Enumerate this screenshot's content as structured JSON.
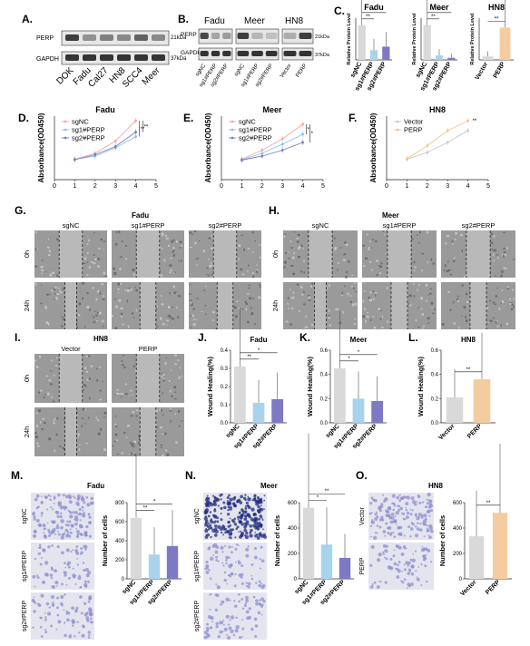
{
  "colors": {
    "grey": "#d9d9d9",
    "light_blue": "#a9d3ec",
    "purple": "#7d79c2",
    "peach": "#f5cc9f",
    "blot_dark": "#2a2a2a",
    "wound_bg": "#9a9a9a",
    "transwell_light": "#8e8fd0",
    "transwell_dark": "#1d2a7c"
  },
  "panels": {
    "A": {
      "letter": "A.",
      "rows": [
        "PERP",
        "GAPDH"
      ],
      "sizes": [
        "21kDa",
        "37kDa"
      ],
      "lanes": [
        "DOK",
        "Fadu",
        "Cal27",
        "HN8",
        "SCC4",
        "Meer"
      ]
    },
    "B": {
      "letter": "B.",
      "groups": [
        "Fadu",
        "Meer",
        "HN8"
      ],
      "rows": [
        "PERP",
        "GAPDH"
      ],
      "sizes": [
        "21kDa",
        "37kDa"
      ],
      "lanes": [
        "sgNC",
        "sg1#PERP",
        "sg2#PERP",
        "sgNC",
        "sg1#PERP",
        "sg2#PERP",
        "Vector",
        "PERP"
      ]
    },
    "C": {
      "letter": "C.",
      "ylabel": "Relative Protein Level",
      "sig": [
        "**",
        "*",
        "**",
        "**",
        "**"
      ]
    },
    "D": {
      "letter": "D.",
      "title": "Fadu",
      "sig": [
        "**",
        "**"
      ]
    },
    "E": {
      "letter": "E.",
      "title": "Meer",
      "sig": [
        "*",
        "*"
      ]
    },
    "F": {
      "letter": "F.",
      "title": "HN8",
      "sig": [
        "**"
      ]
    },
    "curves": {
      "ylabel": "Absorbance(OD450)",
      "xticks": [
        "0",
        "1",
        "2",
        "3",
        "4",
        "5"
      ],
      "legend_sg": [
        "sgNC",
        "sg1#PERP",
        "sg2#PERP"
      ],
      "legend_ov": [
        "Vector",
        "PERP"
      ]
    },
    "G": {
      "letter": "G.",
      "title": "Fadu",
      "cols": [
        "sgNC",
        "sg1#PERP",
        "sg2#PERP"
      ],
      "rows": [
        "0h",
        "24h"
      ]
    },
    "H": {
      "letter": "H.",
      "title": "Meer",
      "cols": [
        "sgNC",
        "sg1#PERP",
        "sg2#PERP"
      ],
      "rows": [
        "0h",
        "24h"
      ]
    },
    "I": {
      "letter": "I.",
      "title": "HN8",
      "cols": [
        "Vector",
        "PERP"
      ],
      "rows": [
        "0h",
        "24h"
      ]
    },
    "J": {
      "letter": "J.",
      "title": "Fadu",
      "sig": [
        "**",
        "*"
      ]
    },
    "K": {
      "letter": "K.",
      "title": "Meer",
      "sig": [
        "*",
        "*"
      ]
    },
    "L": {
      "letter": "L.",
      "title": "HN8",
      "sig": [
        "**"
      ]
    },
    "wound": {
      "ylabel": "Wound Healing(%)",
      "yticks": [
        "0.0",
        "0.2",
        "0.4",
        "0.6"
      ]
    },
    "M": {
      "letter": "M.",
      "title": "Fadu",
      "rows": [
        "sgNC",
        "sg1#PERP",
        "sg2#PERP"
      ],
      "sig": [
        "**",
        "*"
      ]
    },
    "N": {
      "letter": "N.",
      "title": "Meer",
      "rows": [
        "sgNC",
        "sg1#PERP",
        "sg2#PERP"
      ],
      "sig": [
        "*",
        "**"
      ]
    },
    "O": {
      "letter": "O.",
      "title": "HN8",
      "rows": [
        "Vector",
        "PERP"
      ],
      "sig": [
        "**"
      ]
    },
    "cells": {
      "ylabel": "Number of cells",
      "yticks_mn": [
        "0",
        "200",
        "400",
        "600",
        "800"
      ],
      "yticks_o": [
        "0",
        "200",
        "400",
        "600"
      ]
    }
  },
  "chart_data": [
    {
      "id": "C-Fadu",
      "type": "bar",
      "title": "Fadu",
      "ylabel": "Relative Protein Level",
      "categories": [
        "sgNC",
        "sg1#PERP",
        "sg2#PERP"
      ],
      "values": [
        1.0,
        0.28,
        0.38
      ],
      "ylim": [
        0,
        1.2
      ]
    },
    {
      "id": "C-Meer",
      "type": "bar",
      "title": "Meer",
      "ylabel": "Relative Protein Level",
      "categories": [
        "sgNC",
        "sg1#PERP",
        "sg2#PERP"
      ],
      "values": [
        1.0,
        0.13,
        0.06
      ],
      "ylim": [
        0,
        1.2
      ]
    },
    {
      "id": "C-HN8",
      "type": "bar",
      "title": "HN8",
      "ylabel": "Relative Protein Level",
      "categories": [
        "Vector",
        "PERP"
      ],
      "values": [
        1.0,
        9.3
      ],
      "ylim": [
        0,
        12
      ]
    },
    {
      "id": "D",
      "type": "line",
      "title": "Fadu",
      "xlabel": "",
      "ylabel": "Absorbance(OD450)",
      "x": [
        1,
        2,
        3,
        4
      ],
      "xlim": [
        0,
        5
      ],
      "ylim": [
        0,
        1.4
      ],
      "series": [
        {
          "name": "sgNC",
          "values": [
            0.45,
            0.58,
            0.85,
            1.3
          ]
        },
        {
          "name": "sg1#PERP",
          "values": [
            0.45,
            0.52,
            0.7,
            0.95
          ]
        },
        {
          "name": "sg2#PERP",
          "values": [
            0.44,
            0.55,
            0.73,
            1.05
          ]
        }
      ]
    },
    {
      "id": "E",
      "type": "line",
      "title": "Meer",
      "xlabel": "",
      "ylabel": "Absorbance(OD450)",
      "x": [
        1,
        2,
        3,
        4
      ],
      "xlim": [
        0,
        5
      ],
      "ylim": [
        0,
        1.4
      ],
      "series": [
        {
          "name": "sgNC",
          "values": [
            0.45,
            0.65,
            0.9,
            1.22
          ]
        },
        {
          "name": "sg1#PERP",
          "values": [
            0.44,
            0.58,
            0.78,
            1.0
          ]
        },
        {
          "name": "sg2#PERP",
          "values": [
            0.43,
            0.52,
            0.65,
            0.82
          ]
        }
      ]
    },
    {
      "id": "F",
      "type": "line",
      "title": "HN8",
      "xlabel": "",
      "ylabel": "Absorbance(OD450)",
      "x": [
        1,
        2,
        3,
        4
      ],
      "xlim": [
        0,
        5
      ],
      "ylim": [
        0,
        1.4
      ],
      "series": [
        {
          "name": "Vector",
          "values": [
            0.45,
            0.6,
            0.82,
            1.08
          ]
        },
        {
          "name": "PERP",
          "values": [
            0.46,
            0.75,
            1.08,
            1.3
          ]
        }
      ]
    },
    {
      "id": "J",
      "type": "bar",
      "title": "Fadu",
      "ylabel": "Wound Healing(%)",
      "categories": [
        "sgNC",
        "sg1#PERP",
        "sg2#PERP"
      ],
      "values": [
        0.31,
        0.11,
        0.13
      ],
      "ylim": [
        0,
        0.4
      ]
    },
    {
      "id": "K",
      "type": "bar",
      "title": "Meer",
      "ylabel": "Wound Healing(%)",
      "categories": [
        "sgNC",
        "sg1#PERP",
        "sg2#PERP"
      ],
      "values": [
        0.45,
        0.2,
        0.18
      ],
      "ylim": [
        0,
        0.6
      ]
    },
    {
      "id": "L",
      "type": "bar",
      "title": "HN8",
      "ylabel": "Wound Healing(%)",
      "categories": [
        "Vector",
        "PERP"
      ],
      "values": [
        0.21,
        0.36
      ],
      "ylim": [
        0,
        0.6
      ]
    },
    {
      "id": "M",
      "type": "bar",
      "title": "Fadu",
      "ylabel": "Number of cells",
      "categories": [
        "sgNC",
        "sg1#PERP",
        "sg2#PERP"
      ],
      "values": [
        640,
        255,
        345
      ],
      "ylim": [
        0,
        800
      ]
    },
    {
      "id": "N",
      "type": "bar",
      "title": "Meer",
      "ylabel": "Number of cells",
      "categories": [
        "sgNC",
        "sg1#PERP",
        "sg2#PERP"
      ],
      "values": [
        560,
        270,
        165
      ],
      "ylim": [
        0,
        600
      ]
    },
    {
      "id": "O",
      "type": "bar",
      "title": "HN8",
      "ylabel": "Number of cells",
      "categories": [
        "Vector",
        "PERP"
      ],
      "values": [
        335,
        520
      ],
      "ylim": [
        0,
        600
      ]
    }
  ]
}
